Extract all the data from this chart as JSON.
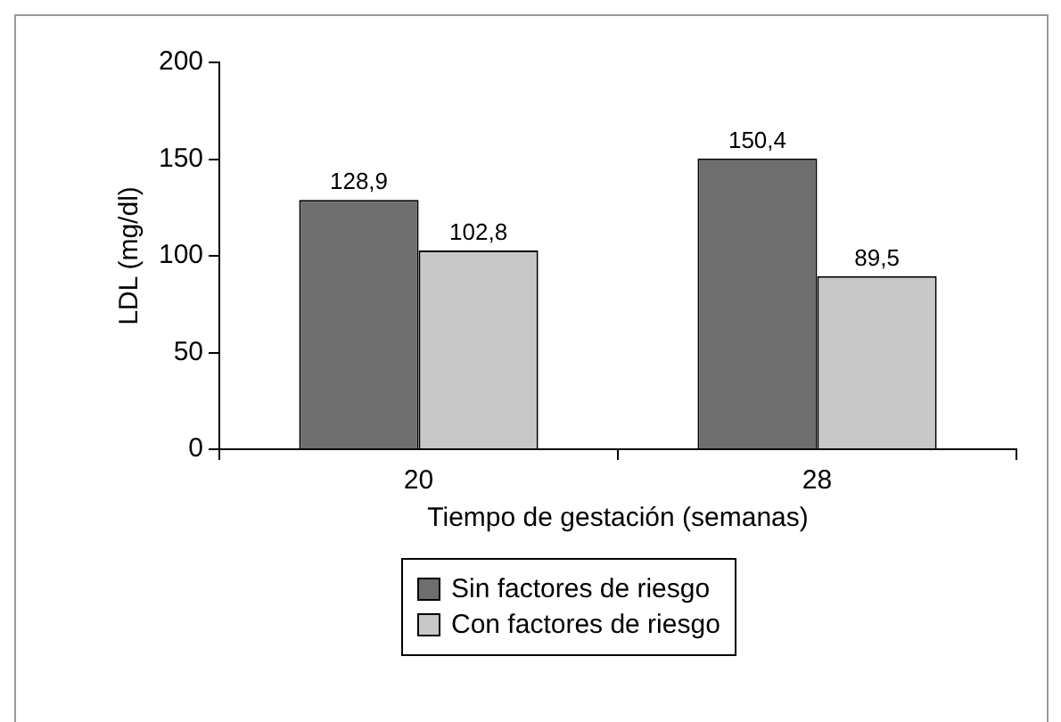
{
  "chart_data": {
    "type": "bar",
    "xlabel": "Tiempo de gestación (semanas)",
    "ylabel": "LDL (mg/dl)",
    "categories": [
      "20",
      "28"
    ],
    "series": [
      {
        "name": "Sin factores de riesgo",
        "color": "#6e6e6e",
        "values": [
          128.9,
          150.4
        ],
        "value_labels": [
          "128,9",
          "150,4"
        ]
      },
      {
        "name": "Con factores de riesgo",
        "color": "#c8c8c8",
        "values": [
          102.8,
          89.5
        ],
        "value_labels": [
          "102,8",
          "89,5"
        ]
      }
    ],
    "ylim": [
      0,
      200
    ],
    "yticks": [
      0,
      50,
      100,
      150,
      200
    ],
    "grid": false,
    "legend": "bottom"
  }
}
